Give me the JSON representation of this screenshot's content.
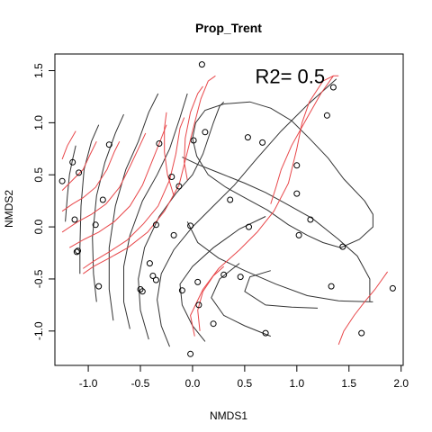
{
  "chart_data": {
    "type": "scatter",
    "title": "Prop_Trent",
    "xlabel": "NMDS1",
    "ylabel": "NMDS2",
    "xlim": [
      -1.32,
      2.02
    ],
    "ylim": [
      -1.33,
      1.66
    ],
    "xticks": [
      -1.0,
      -0.5,
      0.0,
      0.5,
      1.0,
      1.5,
      2.0
    ],
    "xtick_labels": [
      "-1.0",
      "-0.5",
      "0.0",
      "0.5",
      "1.0",
      "1.5",
      "2.0"
    ],
    "yticks": [
      -1.0,
      -0.5,
      0.0,
      0.5,
      1.0,
      1.5
    ],
    "ytick_labels": [
      "-1.0",
      "-0.5",
      "0.0",
      "0.5",
      "1.0",
      "1.5"
    ],
    "annotation": "R2= 0.5",
    "grid": false,
    "colors": {
      "black_contours": "#333333",
      "red_contours": "#e8474a",
      "points": "#000000"
    },
    "points": [
      [
        0.09,
        1.56
      ],
      [
        1.35,
        1.34
      ],
      [
        1.29,
        1.07
      ],
      [
        0.12,
        0.91
      ],
      [
        0.53,
        0.86
      ],
      [
        0.67,
        0.81
      ],
      [
        0.01,
        0.83
      ],
      [
        -0.32,
        0.8
      ],
      [
        -0.8,
        0.79
      ],
      [
        -1.15,
        0.62
      ],
      [
        -1.09,
        0.52
      ],
      [
        -1.25,
        0.44
      ],
      [
        -0.2,
        0.48
      ],
      [
        -0.13,
        0.39
      ],
      [
        0.36,
        0.26
      ],
      [
        -0.86,
        0.26
      ],
      [
        1.0,
        0.59
      ],
      [
        1.0,
        0.32
      ],
      [
        1.13,
        0.07
      ],
      [
        1.02,
        -0.08
      ],
      [
        1.44,
        -0.19
      ],
      [
        -1.13,
        0.07
      ],
      [
        -0.93,
        0.02
      ],
      [
        -0.35,
        0.02
      ],
      [
        -0.02,
        0.01
      ],
      [
        0.54,
        0.0
      ],
      [
        -0.18,
        -0.08
      ],
      [
        -1.1,
        -0.23
      ],
      [
        -1.11,
        -0.24
      ],
      [
        -0.41,
        -0.35
      ],
      [
        -0.38,
        -0.47
      ],
      [
        -0.35,
        -0.51
      ],
      [
        0.3,
        -0.46
      ],
      [
        0.46,
        -0.48
      ],
      [
        0.05,
        -0.53
      ],
      [
        -0.9,
        -0.57
      ],
      [
        -0.5,
        -0.6
      ],
      [
        -0.48,
        -0.62
      ],
      [
        -0.1,
        -0.61
      ],
      [
        1.33,
        -0.57
      ],
      [
        1.92,
        -0.59
      ],
      [
        0.06,
        -0.75
      ],
      [
        0.2,
        -0.93
      ],
      [
        0.7,
        -1.02
      ],
      [
        1.62,
        -1.02
      ],
      [
        -0.02,
        -1.22
      ]
    ],
    "black_contours": [
      [
        [
          -1.22,
          0.05
        ],
        [
          -1.2,
          0.3
        ],
        [
          -1.18,
          0.5
        ],
        [
          -1.15,
          0.65
        ],
        [
          -1.12,
          0.78
        ]
      ],
      [
        [
          -1.08,
          -0.45
        ],
        [
          -1.08,
          -0.2
        ],
        [
          -1.07,
          0.2
        ],
        [
          -1.04,
          0.55
        ],
        [
          -0.97,
          0.82
        ],
        [
          -0.9,
          0.98
        ]
      ],
      [
        [
          -0.92,
          -0.72
        ],
        [
          -0.95,
          -0.45
        ],
        [
          -0.96,
          -0.1
        ],
        [
          -0.92,
          0.3
        ],
        [
          -0.84,
          0.62
        ],
        [
          -0.74,
          0.9
        ],
        [
          -0.66,
          1.08
        ]
      ],
      [
        [
          -0.76,
          -0.9
        ],
        [
          -0.8,
          -0.6
        ],
        [
          -0.8,
          -0.2
        ],
        [
          -0.74,
          0.2
        ],
        [
          -0.64,
          0.55
        ],
        [
          -0.52,
          0.82
        ],
        [
          -0.42,
          1.1
        ],
        [
          -0.33,
          1.28
        ]
      ],
      [
        [
          -0.6,
          -0.98
        ],
        [
          -0.66,
          -0.72
        ],
        [
          -0.66,
          -0.38
        ],
        [
          -0.6,
          -0.08
        ],
        [
          -0.48,
          0.25
        ],
        [
          -0.34,
          0.5
        ],
        [
          -0.22,
          0.75
        ],
        [
          -0.12,
          1.05
        ],
        [
          -0.05,
          1.28
        ]
      ],
      [
        [
          -0.42,
          -1.08
        ],
        [
          -0.5,
          -0.8
        ],
        [
          -0.52,
          -0.5
        ],
        [
          -0.46,
          -0.2
        ],
        [
          -0.32,
          0.1
        ],
        [
          -0.16,
          0.32
        ],
        [
          0.0,
          0.5
        ],
        [
          0.1,
          0.7
        ],
        [
          0.2,
          1.0
        ],
        [
          0.26,
          1.16
        ],
        [
          0.3,
          1.2
        ]
      ],
      [
        [
          -0.22,
          -1.15
        ],
        [
          -0.3,
          -0.95
        ],
        [
          -0.34,
          -0.7
        ],
        [
          -0.3,
          -0.45
        ],
        [
          -0.18,
          -0.22
        ],
        [
          0.0,
          0.0
        ],
        [
          0.2,
          0.2
        ],
        [
          0.4,
          0.4
        ],
        [
          0.62,
          0.66
        ],
        [
          0.85,
          0.92
        ],
        [
          1.1,
          1.17
        ],
        [
          1.38,
          1.42
        ]
      ],
      [
        [
          0.12,
          -1.1
        ],
        [
          0.0,
          -0.95
        ],
        [
          -0.1,
          -0.75
        ],
        [
          -0.12,
          -0.55
        ],
        [
          0.0,
          -0.38
        ],
        [
          0.2,
          -0.2
        ],
        [
          0.45,
          -0.02
        ],
        [
          0.7,
          0.1
        ]
      ],
      [
        [
          0.75,
          -1.05
        ],
        [
          0.5,
          -0.95
        ],
        [
          0.3,
          -0.85
        ],
        [
          0.18,
          -0.68
        ],
        [
          0.26,
          -0.5
        ],
        [
          0.45,
          -0.35
        ]
      ],
      [
        [
          1.2,
          -0.78
        ],
        [
          0.95,
          -0.77
        ],
        [
          0.7,
          -0.75
        ],
        [
          0.5,
          -0.62
        ],
        [
          0.55,
          -0.48
        ],
        [
          0.75,
          -0.42
        ]
      ],
      [
        [
          1.73,
          -0.72
        ],
        [
          1.4,
          -0.71
        ],
        [
          1.1,
          -0.66
        ],
        [
          0.8,
          -0.55
        ],
        [
          0.5,
          -0.42
        ],
        [
          0.25,
          -0.3
        ],
        [
          0.05,
          -0.15
        ],
        [
          -0.05,
          0.05
        ]
      ],
      [
        [
          1.7,
          -0.72
        ],
        [
          1.7,
          -0.5
        ],
        [
          1.58,
          -0.28
        ],
        [
          1.4,
          -0.12
        ],
        [
          1.15,
          0.08
        ],
        [
          0.9,
          0.22
        ],
        [
          0.7,
          0.33
        ],
        [
          0.5,
          0.42
        ],
        [
          0.25,
          0.52
        ],
        [
          0.05,
          0.6
        ],
        [
          -0.1,
          0.67
        ]
      ],
      [
        [
          1.65,
          0.25
        ],
        [
          1.45,
          0.46
        ],
        [
          1.3,
          0.66
        ],
        [
          1.12,
          0.85
        ],
        [
          0.95,
          1.02
        ],
        [
          0.75,
          1.14
        ],
        [
          0.55,
          1.2
        ],
        [
          0.3,
          1.18
        ],
        [
          0.12,
          1.12
        ],
        [
          0.03,
          1.0
        ],
        [
          0.0,
          0.85
        ],
        [
          0.04,
          0.68
        ],
        [
          0.15,
          0.5
        ],
        [
          0.32,
          0.38
        ],
        [
          0.5,
          0.28
        ],
        [
          0.72,
          0.16
        ],
        [
          0.92,
          0.02
        ],
        [
          1.1,
          -0.08
        ],
        [
          1.25,
          -0.15
        ],
        [
          1.42,
          -0.2
        ],
        [
          1.6,
          -0.12
        ],
        [
          1.73,
          0.0
        ],
        [
          1.73,
          0.12
        ],
        [
          1.65,
          0.25
        ]
      ]
    ],
    "red_contours": [
      [
        [
          -1.25,
          0.15
        ],
        [
          -1.15,
          0.22
        ],
        [
          -1.05,
          0.28
        ],
        [
          -0.93,
          0.38
        ],
        [
          -0.82,
          0.55
        ],
        [
          -0.75,
          0.72
        ],
        [
          -0.7,
          0.82
        ]
      ],
      [
        [
          -1.25,
          -0.05
        ],
        [
          -1.1,
          0.05
        ],
        [
          -0.97,
          0.12
        ],
        [
          -0.83,
          0.22
        ],
        [
          -0.7,
          0.38
        ],
        [
          -0.6,
          0.58
        ],
        [
          -0.52,
          0.75
        ],
        [
          -0.45,
          0.9
        ]
      ],
      [
        [
          -1.18,
          -0.2
        ],
        [
          -1.04,
          -0.12
        ],
        [
          -0.9,
          -0.05
        ],
        [
          -0.75,
          0.05
        ],
        [
          -0.6,
          0.2
        ],
        [
          -0.48,
          0.4
        ],
        [
          -0.4,
          0.6
        ],
        [
          -0.32,
          0.8
        ],
        [
          -0.25,
          0.98
        ]
      ],
      [
        [
          -1.05,
          -0.4
        ],
        [
          -0.95,
          -0.33
        ],
        [
          -0.8,
          -0.24
        ],
        [
          -0.63,
          -0.13
        ],
        [
          -0.47,
          0.03
        ],
        [
          -0.33,
          0.2
        ],
        [
          -0.22,
          0.45
        ],
        [
          -0.16,
          0.7
        ],
        [
          -0.12,
          0.95
        ],
        [
          -0.08,
          1.05
        ]
      ],
      [
        [
          -1.05,
          -0.45
        ],
        [
          -0.95,
          -0.38
        ],
        [
          -0.8,
          -0.3
        ],
        [
          -0.62,
          -0.2
        ],
        [
          -0.43,
          -0.05
        ],
        [
          -0.27,
          0.15
        ],
        [
          -0.13,
          0.4
        ],
        [
          -0.05,
          0.72
        ],
        [
          0.02,
          1.0
        ],
        [
          0.08,
          1.23
        ],
        [
          0.15,
          1.4
        ],
        [
          0.22,
          1.45
        ]
      ],
      [
        [
          -1.25,
          0.35
        ],
        [
          -1.15,
          0.45
        ],
        [
          -1.05,
          0.55
        ],
        [
          -0.98,
          0.7
        ],
        [
          -0.92,
          0.82
        ]
      ],
      [
        [
          -1.25,
          0.65
        ],
        [
          -1.2,
          0.78
        ],
        [
          -1.12,
          0.92
        ]
      ],
      [
        [
          -0.18,
          0.3
        ],
        [
          -0.24,
          0.5
        ],
        [
          -0.27,
          0.72
        ],
        [
          -0.27,
          0.95
        ],
        [
          -0.25,
          1.1
        ]
      ],
      [
        [
          -0.05,
          0.45
        ],
        [
          -0.08,
          0.62
        ],
        [
          -0.07,
          0.85
        ],
        [
          -0.02,
          1.1
        ],
        [
          0.05,
          1.28
        ],
        [
          0.1,
          1.35
        ]
      ],
      [
        [
          0.02,
          -1.05
        ],
        [
          -0.02,
          -0.85
        ],
        [
          0.1,
          -0.6
        ],
        [
          0.25,
          -0.4
        ],
        [
          0.45,
          -0.22
        ],
        [
          0.62,
          -0.05
        ],
        [
          0.78,
          0.15
        ],
        [
          0.92,
          0.42
        ],
        [
          1.0,
          0.75
        ],
        [
          1.05,
          1.0
        ],
        [
          1.12,
          1.2
        ],
        [
          1.25,
          1.4
        ],
        [
          1.35,
          1.45
        ],
        [
          1.4,
          1.45
        ]
      ],
      [
        [
          1.4,
          -1.13
        ],
        [
          1.45,
          -1.0
        ],
        [
          1.55,
          -0.85
        ],
        [
          1.65,
          -0.72
        ],
        [
          1.75,
          -0.6
        ],
        [
          1.87,
          -0.43
        ]
      ],
      [
        [
          0.75,
          0.22
        ],
        [
          0.8,
          0.38
        ],
        [
          0.85,
          0.55
        ],
        [
          0.95,
          0.78
        ],
        [
          1.1,
          1.05
        ],
        [
          1.23,
          1.28
        ],
        [
          1.35,
          1.45
        ]
      ],
      [
        [
          0.07,
          -1.0
        ],
        [
          0.05,
          -0.8
        ],
        [
          0.1,
          -0.62
        ],
        [
          0.2,
          -0.47
        ],
        [
          0.3,
          -0.38
        ]
      ]
    ]
  }
}
